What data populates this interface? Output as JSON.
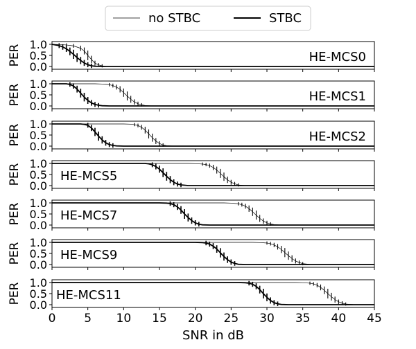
{
  "colors": {
    "background": "#ffffff",
    "axes": "#000000",
    "no_stbc": "#000000",
    "stbc": "#000000",
    "legend_border": "#cccccc"
  },
  "legend": {
    "position": "top-center",
    "entries": [
      "no STBC",
      "STBC"
    ]
  },
  "chart_data": [
    {
      "type": "line",
      "panel_label": "HE-MCS0",
      "label_position": "right",
      "xlabel": "SNR in dB",
      "ylabel": "PER",
      "xlim": [
        0,
        45
      ],
      "ylim": [
        0,
        1
      ],
      "xticks": [
        "0",
        "5",
        "10",
        "15",
        "20",
        "25",
        "30",
        "35",
        "40",
        "45"
      ],
      "yticks": [
        "0.0",
        "0.5",
        "1.0"
      ],
      "series": [
        {
          "name": "no STBC",
          "x": [
            0,
            1,
            2,
            3,
            4,
            4.5,
            5,
            5.5,
            6,
            6.5,
            7,
            7.5,
            8,
            9,
            10,
            45
          ],
          "y": [
            1.0,
            0.99,
            0.97,
            0.93,
            0.82,
            0.7,
            0.5,
            0.32,
            0.15,
            0.07,
            0.03,
            0.01,
            0.0,
            0.0,
            0.0,
            0.0
          ]
        },
        {
          "name": "STBC",
          "x": [
            0,
            1,
            1.5,
            2,
            2.5,
            3,
            3.5,
            4,
            4.5,
            5,
            5.5,
            6,
            7,
            8,
            45
          ],
          "y": [
            1.0,
            0.94,
            0.88,
            0.8,
            0.68,
            0.55,
            0.4,
            0.27,
            0.16,
            0.08,
            0.03,
            0.01,
            0.0,
            0.0,
            0.0
          ]
        }
      ]
    },
    {
      "type": "line",
      "panel_label": "HE-MCS1",
      "label_position": "right",
      "xlabel": "SNR in dB",
      "ylabel": "PER",
      "xlim": [
        0,
        45
      ],
      "ylim": [
        0,
        1
      ],
      "xticks": [
        "0",
        "5",
        "10",
        "15",
        "20",
        "25",
        "30",
        "35",
        "40",
        "45"
      ],
      "yticks": [
        "0.0",
        "0.5",
        "1.0"
      ],
      "series": [
        {
          "name": "no STBC",
          "x": [
            0,
            6,
            7,
            7.5,
            8,
            8.5,
            9,
            9.5,
            10,
            10.5,
            11,
            11.5,
            12,
            12.5,
            13,
            14,
            45
          ],
          "y": [
            1.0,
            1.0,
            0.99,
            0.98,
            0.96,
            0.92,
            0.85,
            0.75,
            0.6,
            0.45,
            0.3,
            0.18,
            0.1,
            0.05,
            0.02,
            0.0,
            0.0
          ]
        },
        {
          "name": "STBC",
          "x": [
            0,
            2,
            2.5,
            3,
            3.5,
            4,
            4.5,
            5,
            5.5,
            6,
            6.5,
            7,
            8,
            45
          ],
          "y": [
            1.0,
            1.0,
            0.97,
            0.9,
            0.76,
            0.58,
            0.4,
            0.25,
            0.14,
            0.07,
            0.03,
            0.01,
            0.0,
            0.0
          ]
        }
      ]
    },
    {
      "type": "line",
      "panel_label": "HE-MCS2",
      "label_position": "right",
      "xlabel": "SNR in dB",
      "ylabel": "PER",
      "xlim": [
        0,
        45
      ],
      "ylim": [
        0,
        1
      ],
      "xticks": [
        "0",
        "5",
        "10",
        "15",
        "20",
        "25",
        "30",
        "35",
        "40",
        "45"
      ],
      "yticks": [
        "0.0",
        "0.5",
        "1.0"
      ],
      "series": [
        {
          "name": "no STBC",
          "x": [
            0,
            10,
            11,
            11.5,
            12,
            12.5,
            13,
            13.5,
            14,
            14.5,
            15,
            15.5,
            16,
            17,
            45
          ],
          "y": [
            1.0,
            1.0,
            0.99,
            0.97,
            0.93,
            0.85,
            0.72,
            0.55,
            0.38,
            0.23,
            0.12,
            0.05,
            0.02,
            0.0,
            0.0
          ]
        },
        {
          "name": "STBC",
          "x": [
            0,
            4,
            4.5,
            5,
            5.5,
            6,
            6.5,
            7,
            7.5,
            8,
            8.5,
            9,
            10,
            45
          ],
          "y": [
            1.0,
            1.0,
            0.98,
            0.94,
            0.82,
            0.64,
            0.45,
            0.28,
            0.15,
            0.07,
            0.03,
            0.01,
            0.0,
            0.0
          ]
        }
      ]
    },
    {
      "type": "line",
      "panel_label": "HE-MCS5",
      "label_position": "left",
      "xlabel": "SNR in dB",
      "ylabel": "PER",
      "xlim": [
        0,
        45
      ],
      "ylim": [
        0,
        1
      ],
      "xticks": [
        "0",
        "5",
        "10",
        "15",
        "20",
        "25",
        "30",
        "35",
        "40",
        "45"
      ],
      "yticks": [
        "0.0",
        "0.5",
        "1.0"
      ],
      "series": [
        {
          "name": "no STBC",
          "x": [
            0,
            19,
            20,
            21,
            21.5,
            22,
            22.5,
            23,
            23.5,
            24,
            24.5,
            25,
            25.5,
            26,
            27,
            45
          ],
          "y": [
            1.0,
            1.0,
            0.99,
            0.97,
            0.95,
            0.9,
            0.82,
            0.7,
            0.55,
            0.4,
            0.26,
            0.15,
            0.08,
            0.03,
            0.0,
            0.0
          ]
        },
        {
          "name": "STBC",
          "x": [
            0,
            13,
            13.5,
            14,
            14.5,
            15,
            15.5,
            16,
            16.5,
            17,
            17.5,
            18,
            19,
            45
          ],
          "y": [
            1.0,
            1.0,
            0.98,
            0.94,
            0.86,
            0.74,
            0.58,
            0.42,
            0.27,
            0.15,
            0.07,
            0.03,
            0.0,
            0.0
          ]
        }
      ]
    },
    {
      "type": "line",
      "panel_label": "HE-MCS7",
      "label_position": "left",
      "xlabel": "SNR in dB",
      "ylabel": "PER",
      "xlim": [
        0,
        45
      ],
      "ylim": [
        0,
        1
      ],
      "xticks": [
        "0",
        "5",
        "10",
        "15",
        "20",
        "25",
        "30",
        "35",
        "40",
        "45"
      ],
      "yticks": [
        "0.0",
        "0.5",
        "1.0"
      ],
      "series": [
        {
          "name": "no STBC",
          "x": [
            0,
            24,
            25,
            26,
            26.5,
            27,
            27.5,
            28,
            28.5,
            29,
            29.5,
            30,
            30.5,
            31,
            32,
            45
          ],
          "y": [
            1.0,
            1.0,
            0.99,
            0.96,
            0.92,
            0.85,
            0.74,
            0.6,
            0.45,
            0.3,
            0.18,
            0.1,
            0.05,
            0.02,
            0.0,
            0.0
          ]
        },
        {
          "name": "STBC",
          "x": [
            0,
            15,
            16,
            16.5,
            17,
            17.5,
            18,
            18.5,
            19,
            19.5,
            20,
            20.5,
            21,
            22,
            45
          ],
          "y": [
            1.0,
            1.0,
            0.99,
            0.97,
            0.92,
            0.82,
            0.68,
            0.5,
            0.34,
            0.2,
            0.1,
            0.04,
            0.01,
            0.0,
            0.0
          ]
        }
      ]
    },
    {
      "type": "line",
      "panel_label": "HE-MCS9",
      "label_position": "left",
      "xlabel": "SNR in dB",
      "ylabel": "PER",
      "xlim": [
        0,
        45
      ],
      "ylim": [
        0,
        1
      ],
      "xticks": [
        "0",
        "5",
        "10",
        "15",
        "20",
        "25",
        "30",
        "35",
        "40",
        "45"
      ],
      "yticks": [
        "0.0",
        "0.5",
        "1.0"
      ],
      "series": [
        {
          "name": "no STBC",
          "x": [
            0,
            28,
            29,
            30,
            30.5,
            31,
            31.5,
            32,
            32.5,
            33,
            33.5,
            34,
            34.5,
            35,
            36,
            37,
            45
          ],
          "y": [
            1.0,
            1.0,
            0.99,
            0.97,
            0.94,
            0.88,
            0.8,
            0.68,
            0.54,
            0.4,
            0.27,
            0.16,
            0.09,
            0.04,
            0.01,
            0.0,
            0.0
          ]
        },
        {
          "name": "STBC",
          "x": [
            0,
            20,
            21,
            21.5,
            22,
            22.5,
            23,
            23.5,
            24,
            24.5,
            25,
            25.5,
            26,
            27,
            45
          ],
          "y": [
            1.0,
            1.0,
            0.99,
            0.97,
            0.92,
            0.83,
            0.7,
            0.53,
            0.36,
            0.22,
            0.11,
            0.05,
            0.01,
            0.0,
            0.0
          ]
        }
      ]
    },
    {
      "type": "line",
      "panel_label": "HE-MCS11",
      "label_position": "left",
      "xlabel": "SNR in dB",
      "ylabel": "PER",
      "xlim": [
        0,
        45
      ],
      "ylim": [
        0,
        1
      ],
      "xticks": [
        "0",
        "5",
        "10",
        "15",
        "20",
        "25",
        "30",
        "35",
        "40",
        "45"
      ],
      "yticks": [
        "0.0",
        "0.5",
        "1.0"
      ],
      "series": [
        {
          "name": "no STBC",
          "x": [
            0,
            34,
            35,
            36,
            36.5,
            37,
            37.5,
            38,
            38.5,
            39,
            39.5,
            40,
            40.5,
            41,
            42,
            43,
            45
          ],
          "y": [
            1.0,
            1.0,
            0.99,
            0.97,
            0.94,
            0.88,
            0.78,
            0.65,
            0.5,
            0.36,
            0.23,
            0.13,
            0.07,
            0.03,
            0.01,
            0.0,
            0.0
          ]
        },
        {
          "name": "STBC",
          "x": [
            0,
            26,
            27,
            27.5,
            28,
            28.5,
            29,
            29.5,
            30,
            30.5,
            31,
            31.5,
            32,
            33,
            45
          ],
          "y": [
            1.0,
            1.0,
            0.99,
            0.97,
            0.92,
            0.83,
            0.68,
            0.5,
            0.33,
            0.19,
            0.09,
            0.04,
            0.01,
            0.0,
            0.0
          ]
        }
      ]
    }
  ]
}
